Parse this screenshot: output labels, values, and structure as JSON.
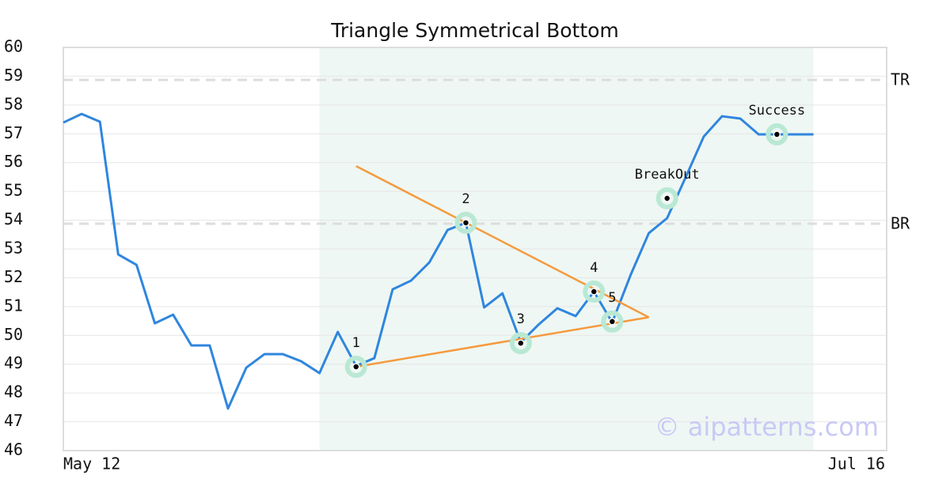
{
  "chart_data": {
    "type": "line",
    "title": "Triangle Symmetrical Bottom",
    "x": [
      0,
      1,
      2,
      3,
      4,
      5,
      6,
      7,
      8,
      9,
      10,
      11,
      12,
      13,
      14,
      15,
      16,
      17,
      18,
      19,
      20,
      21,
      22,
      23,
      24,
      25,
      26,
      27,
      28,
      29,
      30,
      31,
      32,
      33,
      34,
      35,
      36,
      37,
      38,
      39,
      40,
      41
    ],
    "values": [
      57.39,
      57.69,
      57.42,
      52.81,
      52.45,
      50.42,
      50.72,
      49.65,
      49.65,
      47.46,
      48.88,
      49.35,
      49.35,
      49.1,
      48.69,
      50.12,
      48.94,
      49.21,
      51.6,
      51.9,
      52.53,
      53.66,
      53.91,
      50.97,
      51.46,
      49.76,
      50.39,
      50.94,
      50.67,
      51.52,
      50.45,
      52.09,
      53.55,
      54.07,
      55.47,
      56.9,
      57.61,
      57.53,
      56.98,
      56.98,
      56.98,
      56.98
    ],
    "color": "#2f86de",
    "xlim": [
      0,
      45
    ],
    "xticks": [
      {
        "value": 0,
        "label": "May 12"
      },
      {
        "value": 45,
        "label": "Jul 16"
      }
    ],
    "ylim": [
      46,
      60
    ],
    "yticks": [
      46,
      47,
      48,
      49,
      50,
      51,
      52,
      53,
      54,
      55,
      56,
      57,
      58,
      59,
      60
    ],
    "grid": true,
    "highlight": [
      14,
      41
    ],
    "highlight_color": "#eef7f3",
    "trend_color": "#f59a3e",
    "trendlines": [
      {
        "x": [
          16,
          32
        ],
        "y": [
          55.88,
          50.63
        ]
      },
      {
        "x": [
          16,
          32
        ],
        "y": [
          48.91,
          50.63
        ]
      }
    ],
    "levels": [
      {
        "label": "TR",
        "value": 58.87
      },
      {
        "label": "BR",
        "value": 53.88
      }
    ],
    "points": [
      {
        "label": "1",
        "x": 16,
        "y": 48.91
      },
      {
        "label": "2",
        "x": 22,
        "y": 53.91
      },
      {
        "label": "3",
        "x": 25,
        "y": 49.73
      },
      {
        "label": "4",
        "x": 29,
        "y": 51.52
      },
      {
        "label": "5",
        "x": 30,
        "y": 50.48
      },
      {
        "label": "BreakOut",
        "x": 33,
        "y": 54.76
      },
      {
        "label": "Success",
        "x": 39,
        "y": 56.98
      }
    ],
    "watermark": "© aipatterns.com"
  }
}
